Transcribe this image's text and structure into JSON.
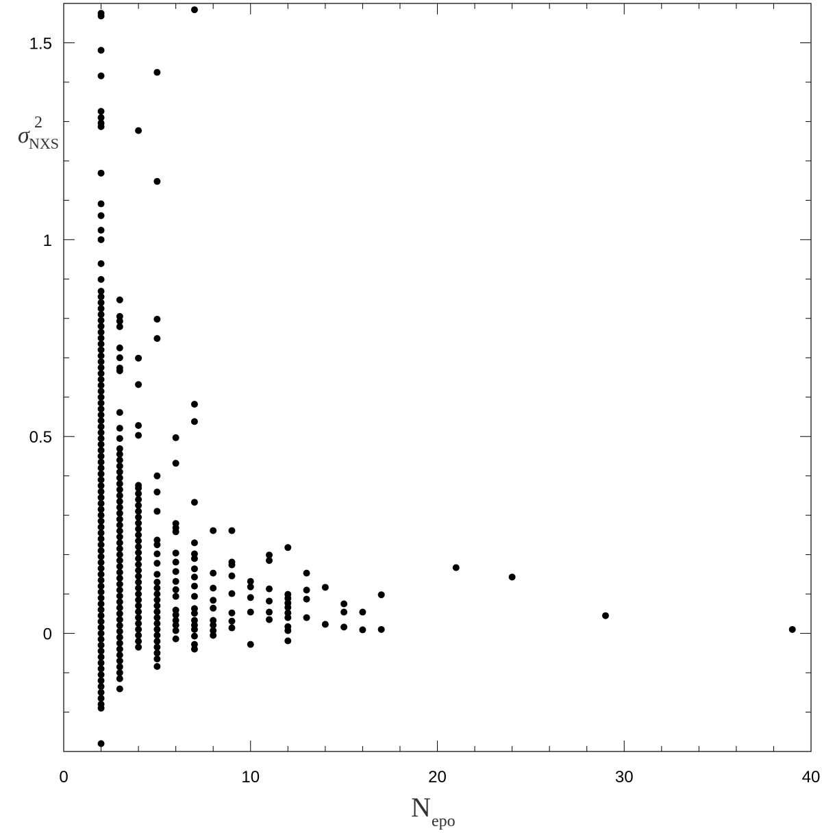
{
  "chart_data": {
    "type": "scatter",
    "xlabel": "N",
    "xlabel_sub": "epo",
    "ylabel": "σ",
    "ylabel_sup": "2",
    "ylabel_sub": "NXS",
    "xlim": [
      0,
      40
    ],
    "ylim": [
      -0.3,
      1.6
    ],
    "xticks": [
      0,
      10,
      20,
      30,
      40
    ],
    "yticks": [
      0,
      0.5,
      1,
      1.5
    ],
    "xminorticks": [
      2,
      4,
      6,
      8,
      12,
      14,
      16,
      18,
      22,
      24,
      26,
      28,
      32,
      34,
      36,
      38
    ],
    "yminorticks": [
      -0.2,
      -0.1,
      0.1,
      0.2,
      0.3,
      0.4,
      0.6,
      0.7,
      0.8,
      0.9,
      1.1,
      1.2,
      1.3,
      1.4
    ],
    "color": "#000000",
    "points": [
      [
        2,
        1.575
      ],
      [
        2,
        1.568
      ],
      [
        2,
        1.481
      ],
      [
        2,
        1.416
      ],
      [
        2,
        1.326
      ],
      [
        2,
        1.31
      ],
      [
        2,
        1.296
      ],
      [
        2,
        1.287
      ],
      [
        2,
        1.169
      ],
      [
        2,
        1.091
      ],
      [
        2,
        1.061
      ],
      [
        2,
        1.024
      ],
      [
        2,
        1.0
      ],
      [
        2,
        0.939
      ],
      [
        2,
        0.899
      ],
      [
        2,
        0.869
      ],
      [
        2,
        0.855
      ],
      [
        2,
        0.84
      ],
      [
        2,
        0.825
      ],
      [
        2,
        0.81
      ],
      [
        2,
        0.795
      ],
      [
        2,
        0.78
      ],
      [
        2,
        0.765
      ],
      [
        2,
        0.75
      ],
      [
        2,
        0.735
      ],
      [
        2,
        0.72
      ],
      [
        2,
        0.705
      ],
      [
        2,
        0.69
      ],
      [
        2,
        0.675
      ],
      [
        2,
        0.66
      ],
      [
        2,
        0.645
      ],
      [
        2,
        0.63
      ],
      [
        2,
        0.615
      ],
      [
        2,
        0.6
      ],
      [
        2,
        0.585
      ],
      [
        2,
        0.57
      ],
      [
        2,
        0.555
      ],
      [
        2,
        0.54
      ],
      [
        2,
        0.525
      ],
      [
        2,
        0.51
      ],
      [
        2,
        0.495
      ],
      [
        2,
        0.48
      ],
      [
        2,
        0.465
      ],
      [
        2,
        0.45
      ],
      [
        2,
        0.435
      ],
      [
        2,
        0.42
      ],
      [
        2,
        0.405
      ],
      [
        2,
        0.39
      ],
      [
        2,
        0.375
      ],
      [
        2,
        0.36
      ],
      [
        2,
        0.345
      ],
      [
        2,
        0.33
      ],
      [
        2,
        0.315
      ],
      [
        2,
        0.3
      ],
      [
        2,
        0.285
      ],
      [
        2,
        0.27
      ],
      [
        2,
        0.255
      ],
      [
        2,
        0.24
      ],
      [
        2,
        0.225
      ],
      [
        2,
        0.21
      ],
      [
        2,
        0.195
      ],
      [
        2,
        0.18
      ],
      [
        2,
        0.165
      ],
      [
        2,
        0.15
      ],
      [
        2,
        0.135
      ],
      [
        2,
        0.12
      ],
      [
        2,
        0.105
      ],
      [
        2,
        0.09
      ],
      [
        2,
        0.075
      ],
      [
        2,
        0.06
      ],
      [
        2,
        0.045
      ],
      [
        2,
        0.03
      ],
      [
        2,
        0.015
      ],
      [
        2,
        0
      ],
      [
        2,
        -0.015
      ],
      [
        2,
        -0.03
      ],
      [
        2,
        -0.045
      ],
      [
        2,
        -0.06
      ],
      [
        2,
        -0.075
      ],
      [
        2,
        -0.09
      ],
      [
        2,
        -0.105
      ],
      [
        2,
        -0.12
      ],
      [
        2,
        -0.135
      ],
      [
        2,
        -0.15
      ],
      [
        2,
        -0.165
      ],
      [
        2,
        -0.18
      ],
      [
        2,
        -0.19
      ],
      [
        2,
        -0.28
      ],
      [
        3,
        0.847
      ],
      [
        3,
        0.805
      ],
      [
        3,
        0.793
      ],
      [
        3,
        0.779
      ],
      [
        3,
        0.725
      ],
      [
        3,
        0.7
      ],
      [
        3,
        0.674
      ],
      [
        3,
        0.667
      ],
      [
        3,
        0.561
      ],
      [
        3,
        0.521
      ],
      [
        3,
        0.495
      ],
      [
        3,
        0.469
      ],
      [
        3,
        0.455
      ],
      [
        3,
        0.44
      ],
      [
        3,
        0.425
      ],
      [
        3,
        0.41
      ],
      [
        3,
        0.395
      ],
      [
        3,
        0.38
      ],
      [
        3,
        0.365
      ],
      [
        3,
        0.35
      ],
      [
        3,
        0.335
      ],
      [
        3,
        0.32
      ],
      [
        3,
        0.305
      ],
      [
        3,
        0.29
      ],
      [
        3,
        0.275
      ],
      [
        3,
        0.26
      ],
      [
        3,
        0.245
      ],
      [
        3,
        0.23
      ],
      [
        3,
        0.215
      ],
      [
        3,
        0.2
      ],
      [
        3,
        0.185
      ],
      [
        3,
        0.17
      ],
      [
        3,
        0.155
      ],
      [
        3,
        0.14
      ],
      [
        3,
        0.125
      ],
      [
        3,
        0.11
      ],
      [
        3,
        0.095
      ],
      [
        3,
        0.08
      ],
      [
        3,
        0.065
      ],
      [
        3,
        0.05
      ],
      [
        3,
        0.035
      ],
      [
        3,
        0.02
      ],
      [
        3,
        0.005
      ],
      [
        3,
        -0.01
      ],
      [
        3,
        -0.025
      ],
      [
        3,
        -0.04
      ],
      [
        3,
        -0.055
      ],
      [
        3,
        -0.07
      ],
      [
        3,
        -0.085
      ],
      [
        3,
        -0.1
      ],
      [
        3,
        -0.115
      ],
      [
        3,
        -0.141
      ],
      [
        4,
        1.277
      ],
      [
        4,
        0.699
      ],
      [
        4,
        0.632
      ],
      [
        4,
        0.528
      ],
      [
        4,
        0.503
      ],
      [
        4,
        0.376
      ],
      [
        4,
        0.369
      ],
      [
        4,
        0.355
      ],
      [
        4,
        0.34
      ],
      [
        4,
        0.325
      ],
      [
        4,
        0.31
      ],
      [
        4,
        0.295
      ],
      [
        4,
        0.28
      ],
      [
        4,
        0.265
      ],
      [
        4,
        0.25
      ],
      [
        4,
        0.235
      ],
      [
        4,
        0.22
      ],
      [
        4,
        0.205
      ],
      [
        4,
        0.19
      ],
      [
        4,
        0.175
      ],
      [
        4,
        0.16
      ],
      [
        4,
        0.145
      ],
      [
        4,
        0.13
      ],
      [
        4,
        0.115
      ],
      [
        4,
        0.1
      ],
      [
        4,
        0.085
      ],
      [
        4,
        0.07
      ],
      [
        4,
        0.055
      ],
      [
        4,
        0.04
      ],
      [
        4,
        0.025
      ],
      [
        4,
        0.01
      ],
      [
        4,
        -0.005
      ],
      [
        4,
        -0.02
      ],
      [
        4,
        -0.035
      ],
      [
        5,
        1.425
      ],
      [
        5,
        1.148
      ],
      [
        5,
        0.798
      ],
      [
        5,
        0.749
      ],
      [
        5,
        0.4
      ],
      [
        5,
        0.359
      ],
      [
        5,
        0.31
      ],
      [
        5,
        0.237
      ],
      [
        5,
        0.225
      ],
      [
        5,
        0.202
      ],
      [
        5,
        0.178
      ],
      [
        5,
        0.15
      ],
      [
        5,
        0.13
      ],
      [
        5,
        0.115
      ],
      [
        5,
        0.1
      ],
      [
        5,
        0.085
      ],
      [
        5,
        0.07
      ],
      [
        5,
        0.055
      ],
      [
        5,
        0.04
      ],
      [
        5,
        0.025
      ],
      [
        5,
        0.01
      ],
      [
        5,
        -0.005
      ],
      [
        5,
        -0.02
      ],
      [
        5,
        -0.035
      ],
      [
        5,
        -0.05
      ],
      [
        5,
        -0.065
      ],
      [
        5,
        -0.084
      ],
      [
        6,
        0.497
      ],
      [
        6,
        0.432
      ],
      [
        6,
        0.279
      ],
      [
        6,
        0.268
      ],
      [
        6,
        0.258
      ],
      [
        6,
        0.204
      ],
      [
        6,
        0.181
      ],
      [
        6,
        0.157
      ],
      [
        6,
        0.132
      ],
      [
        6,
        0.111
      ],
      [
        6,
        0.094
      ],
      [
        6,
        0.059
      ],
      [
        6,
        0.047
      ],
      [
        6,
        0.033
      ],
      [
        6,
        0.021
      ],
      [
        6,
        0.007
      ],
      [
        6,
        -0.014
      ],
      [
        7,
        1.584
      ],
      [
        7,
        0.582
      ],
      [
        7,
        0.538
      ],
      [
        7,
        0.333
      ],
      [
        7,
        0.23
      ],
      [
        7,
        0.202
      ],
      [
        7,
        0.19
      ],
      [
        7,
        0.164
      ],
      [
        7,
        0.143
      ],
      [
        7,
        0.12
      ],
      [
        7,
        0.094
      ],
      [
        7,
        0.063
      ],
      [
        7,
        0.051
      ],
      [
        7,
        0.033
      ],
      [
        7,
        0.021
      ],
      [
        7,
        0.01
      ],
      [
        7,
        -0.007
      ],
      [
        7,
        -0.028
      ],
      [
        7,
        -0.04
      ],
      [
        8,
        0.261
      ],
      [
        8,
        0.153
      ],
      [
        8,
        0.115
      ],
      [
        8,
        0.084
      ],
      [
        8,
        0.064
      ],
      [
        8,
        0.033
      ],
      [
        8,
        0.021
      ],
      [
        8,
        0.007
      ],
      [
        8,
        -0.005
      ],
      [
        9,
        0.261
      ],
      [
        9,
        0.181
      ],
      [
        9,
        0.174
      ],
      [
        9,
        0.146
      ],
      [
        9,
        0.101
      ],
      [
        9,
        0.052
      ],
      [
        9,
        0.031
      ],
      [
        9,
        0.014
      ],
      [
        10,
        0.132
      ],
      [
        10,
        0.118
      ],
      [
        10,
        0.091
      ],
      [
        10,
        0.054
      ],
      [
        10,
        -0.028
      ],
      [
        11,
        0.199
      ],
      [
        11,
        0.185
      ],
      [
        11,
        0.113
      ],
      [
        11,
        0.082
      ],
      [
        11,
        0.054
      ],
      [
        11,
        0.035
      ],
      [
        12,
        0.218
      ],
      [
        12,
        0.099
      ],
      [
        12,
        0.089
      ],
      [
        12,
        0.077
      ],
      [
        12,
        0.066
      ],
      [
        12,
        0.052
      ],
      [
        12,
        0.04
      ],
      [
        12,
        0.017
      ],
      [
        12,
        0.007
      ],
      [
        12,
        -0.019
      ],
      [
        13,
        0.153
      ],
      [
        13,
        0.11
      ],
      [
        13,
        0.087
      ],
      [
        13,
        0.04
      ],
      [
        14,
        0.117
      ],
      [
        14,
        0.023
      ],
      [
        15,
        0.075
      ],
      [
        15,
        0.054
      ],
      [
        15,
        0.016
      ],
      [
        16,
        0.054
      ],
      [
        16,
        0.009
      ],
      [
        17,
        0.098
      ],
      [
        17,
        0.01
      ],
      [
        21,
        0.167
      ],
      [
        24,
        0.143
      ],
      [
        29,
        0.045
      ],
      [
        39,
        0.01
      ]
    ]
  }
}
